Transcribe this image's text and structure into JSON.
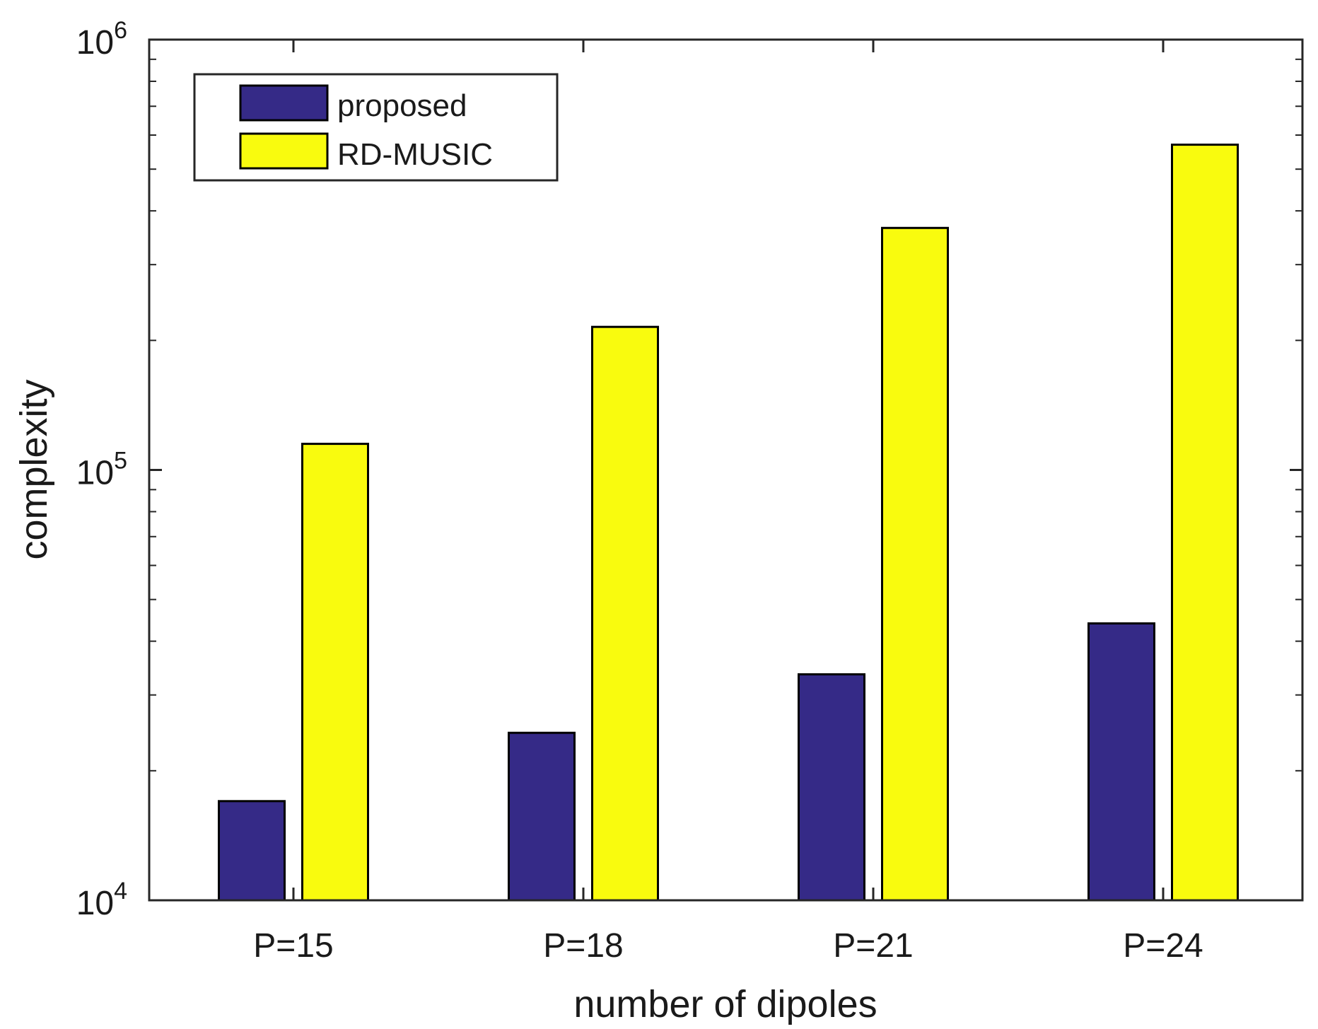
{
  "chart_data": {
    "type": "bar",
    "title": "",
    "xlabel": "number of dipoles",
    "ylabel": "complexity",
    "yscale": "log",
    "ylim": [
      10000,
      1000000
    ],
    "yticks": [
      {
        "value": 10000,
        "base": "10",
        "exp": "4"
      },
      {
        "value": 100000,
        "base": "10",
        "exp": "5"
      },
      {
        "value": 1000000,
        "base": "10",
        "exp": "6"
      }
    ],
    "categories": [
      "P=15",
      "P=18",
      "P=21",
      "P=24"
    ],
    "series": [
      {
        "name": "proposed",
        "color": "#352a87",
        "values": [
          17000,
          24500,
          33500,
          44000
        ]
      },
      {
        "name": "RD-MUSIC",
        "color": "#f9fb0e",
        "values": [
          115000,
          215000,
          365000,
          570000
        ]
      }
    ],
    "legend_position": "top-left",
    "grid": false
  }
}
